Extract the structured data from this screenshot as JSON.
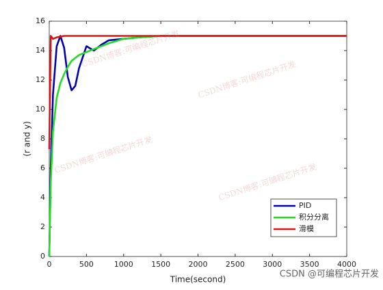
{
  "chart_data": {
    "type": "line",
    "xlabel": "Time(second)",
    "ylabel": "(r and y)",
    "x": [
      0,
      20,
      50,
      100,
      150,
      200,
      250,
      300,
      350,
      400,
      500,
      600,
      700,
      800,
      1000,
      1200,
      1500,
      2000,
      4000
    ],
    "series": [
      {
        "name": "PID",
        "color": "#0000b0",
        "values": [
          0,
          6,
          11,
          14.3,
          15,
          14.2,
          12.2,
          11.3,
          11.6,
          12.8,
          14.3,
          14.0,
          14.4,
          14.7,
          14.8,
          14.9,
          15,
          15,
          15
        ]
      },
      {
        "name": "积分分离",
        "color": "#22dd22",
        "values": [
          0,
          5,
          8.5,
          10.8,
          11.8,
          12.4,
          12.9,
          13.3,
          13.5,
          13.7,
          13.9,
          14.1,
          14.3,
          14.5,
          14.8,
          14.9,
          15,
          15,
          15
        ]
      },
      {
        "name": "滑模",
        "color": "#e01010",
        "values": [
          7.3,
          15,
          14.8,
          14.9,
          14.95,
          15,
          15,
          15,
          15,
          15,
          15,
          15,
          15,
          15,
          15,
          15,
          15,
          15,
          15
        ]
      }
    ],
    "xlim": [
      0,
      4000
    ],
    "xticks": [
      0,
      500,
      1000,
      1500,
      2000,
      2500,
      3000,
      3500,
      4000
    ],
    "ylim": [
      0,
      16
    ],
    "yticks": [
      0,
      2,
      4,
      6,
      8,
      10,
      12,
      14,
      16
    ],
    "legend": "lower right",
    "watermark": "CSDN @可编程芯片开发",
    "overlay_text": "CSDN博客:可编程芯片开发"
  }
}
